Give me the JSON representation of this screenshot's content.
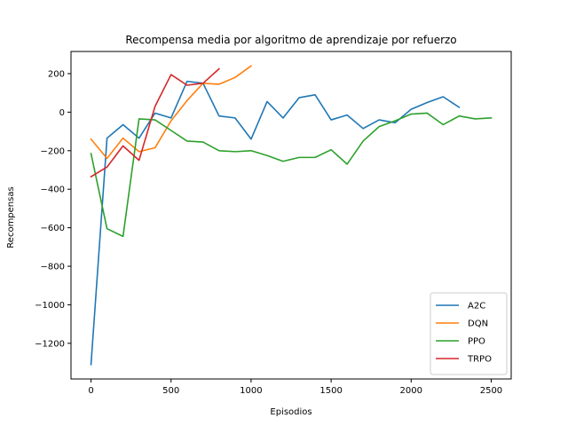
{
  "chart_data": {
    "type": "line",
    "title": "Recompensa media por algoritmo de aprendizaje por refuerzo",
    "xlabel": "Episodios",
    "ylabel": "Recompensas",
    "xlim": [
      -125,
      2625
    ],
    "ylim": [
      -1385,
      315
    ],
    "xticks": [
      0,
      500,
      1000,
      1500,
      2000,
      2500
    ],
    "yticks": [
      -1200,
      -1000,
      -800,
      -600,
      -400,
      -200,
      0,
      200
    ],
    "grid": false,
    "legend": "bottom-right",
    "series": [
      {
        "name": "A2C",
        "color": "#1f77b4",
        "x": [
          0,
          100,
          200,
          300,
          400,
          500,
          600,
          700,
          800,
          900,
          1000,
          1100,
          1200,
          1300,
          1400,
          1500,
          1600,
          1700,
          1800,
          1900,
          2000,
          2100,
          2200,
          2300
        ],
        "y": [
          -1310,
          -135,
          -65,
          -135,
          -5,
          -30,
          160,
          150,
          -20,
          -30,
          -140,
          55,
          -30,
          75,
          90,
          -40,
          -15,
          -85,
          -40,
          -55,
          15,
          50,
          80,
          25
        ]
      },
      {
        "name": "DQN",
        "color": "#ff7f0e",
        "x": [
          0,
          100,
          200,
          300,
          400,
          500,
          600,
          700,
          800,
          900,
          1000
        ],
        "y": [
          -140,
          -240,
          -135,
          -205,
          -185,
          -45,
          60,
          150,
          145,
          180,
          240
        ]
      },
      {
        "name": "PPO",
        "color": "#2ca02c",
        "x": [
          0,
          100,
          200,
          300,
          400,
          500,
          600,
          700,
          800,
          900,
          1000,
          1100,
          1200,
          1300,
          1400,
          1500,
          1600,
          1700,
          1800,
          1900,
          2000,
          2100,
          2200,
          2300,
          2400,
          2500
        ],
        "y": [
          -215,
          -605,
          -645,
          -35,
          -40,
          -95,
          -150,
          -155,
          -200,
          -205,
          -200,
          -225,
          -255,
          -235,
          -235,
          -195,
          -270,
          -150,
          -75,
          -45,
          -10,
          -5,
          -65,
          -20,
          -35,
          -30
        ]
      },
      {
        "name": "TRPO",
        "color": "#d62728",
        "x": [
          0,
          100,
          200,
          300,
          400,
          500,
          600,
          700,
          800
        ],
        "y": [
          -335,
          -285,
          -175,
          -250,
          30,
          195,
          140,
          150,
          225
        ]
      }
    ]
  }
}
